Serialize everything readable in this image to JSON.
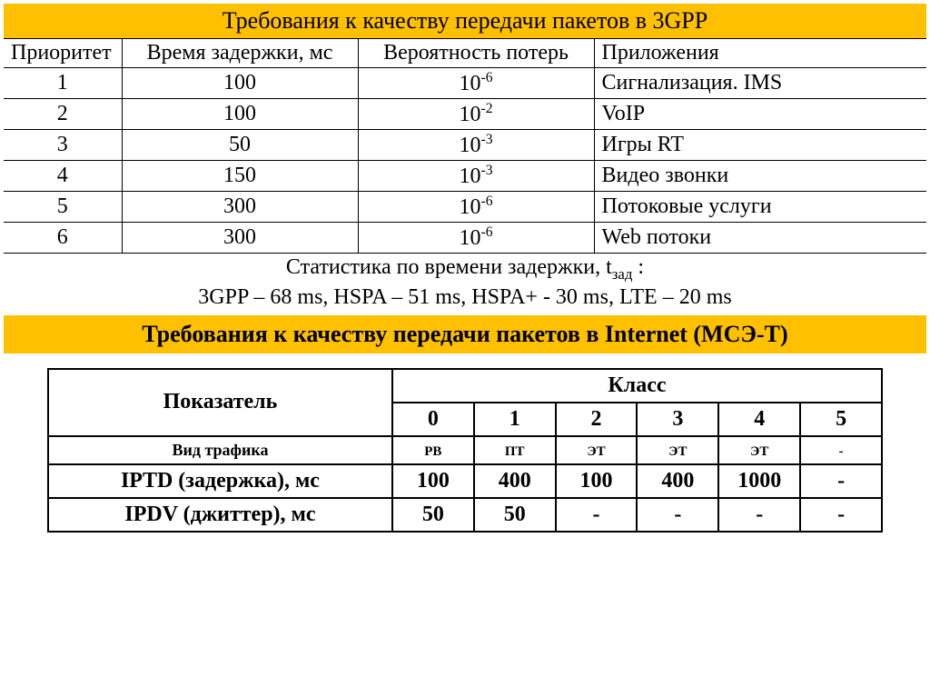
{
  "table1": {
    "title": "Требования к качеству передачи пакетов в 3GPP",
    "title_bg": "#ffc000",
    "headers": {
      "c1": "Приоритет",
      "c2": "Время задержки, мс",
      "c3": "Вероятность потерь",
      "c4": "Приложения"
    },
    "rows": [
      {
        "priority": "1",
        "delay": "100",
        "prob_base": "10",
        "prob_exp": "-6",
        "app": "Сигнализация. IMS"
      },
      {
        "priority": "2",
        "delay": "100",
        "prob_base": "10",
        "prob_exp": "-2",
        "app": "VoIP"
      },
      {
        "priority": "3",
        "delay": "50",
        "prob_base": "10",
        "prob_exp": "-3",
        "app": "Игры RT"
      },
      {
        "priority": "4",
        "delay": "150",
        "prob_base": "10",
        "prob_exp": "-3",
        "app": "Видео звонки"
      },
      {
        "priority": "5",
        "delay": "300",
        "prob_base": "10",
        "prob_exp": "-6",
        "app": "Потоковые услуги"
      },
      {
        "priority": "6",
        "delay": "300",
        "prob_base": "10",
        "prob_exp": "-6",
        "app": "Web потоки"
      }
    ],
    "font_size": 24,
    "border_color": "#000000"
  },
  "stats": {
    "line1_pre": "Статистика по времени задержки, t",
    "line1_sub": "зад",
    "line1_post": " :",
    "line2": "3GPP – 68 ms,  HSPA – 51 ms,  HSPA+ - 30 ms,  LTE – 20 ms"
  },
  "table2": {
    "title": "Требования к качеству передачи пакетов в Internet (МСЭ-Т)",
    "title_bg": "#ffc000",
    "indicator_header": "Показатель",
    "class_header": "Класс",
    "class_numbers": [
      "0",
      "1",
      "2",
      "3",
      "4",
      "5"
    ],
    "rows": [
      {
        "label": "Вид трафика",
        "bold": true,
        "small": true,
        "values": [
          "РВ",
          "ПТ",
          "ЭТ",
          "ЭТ",
          "ЭТ",
          "-"
        ]
      },
      {
        "label": "IPTD (задержка), мс",
        "bold": true,
        "small": false,
        "values": [
          "100",
          "400",
          "100",
          "400",
          "1000",
          "-"
        ]
      },
      {
        "label": "IPDV (джиттер), мс",
        "bold": true,
        "small": false,
        "values": [
          "50",
          "50",
          "-",
          "-",
          "-",
          "-"
        ]
      }
    ],
    "font_size": 24,
    "border_color": "#000000",
    "border_width": 2
  }
}
